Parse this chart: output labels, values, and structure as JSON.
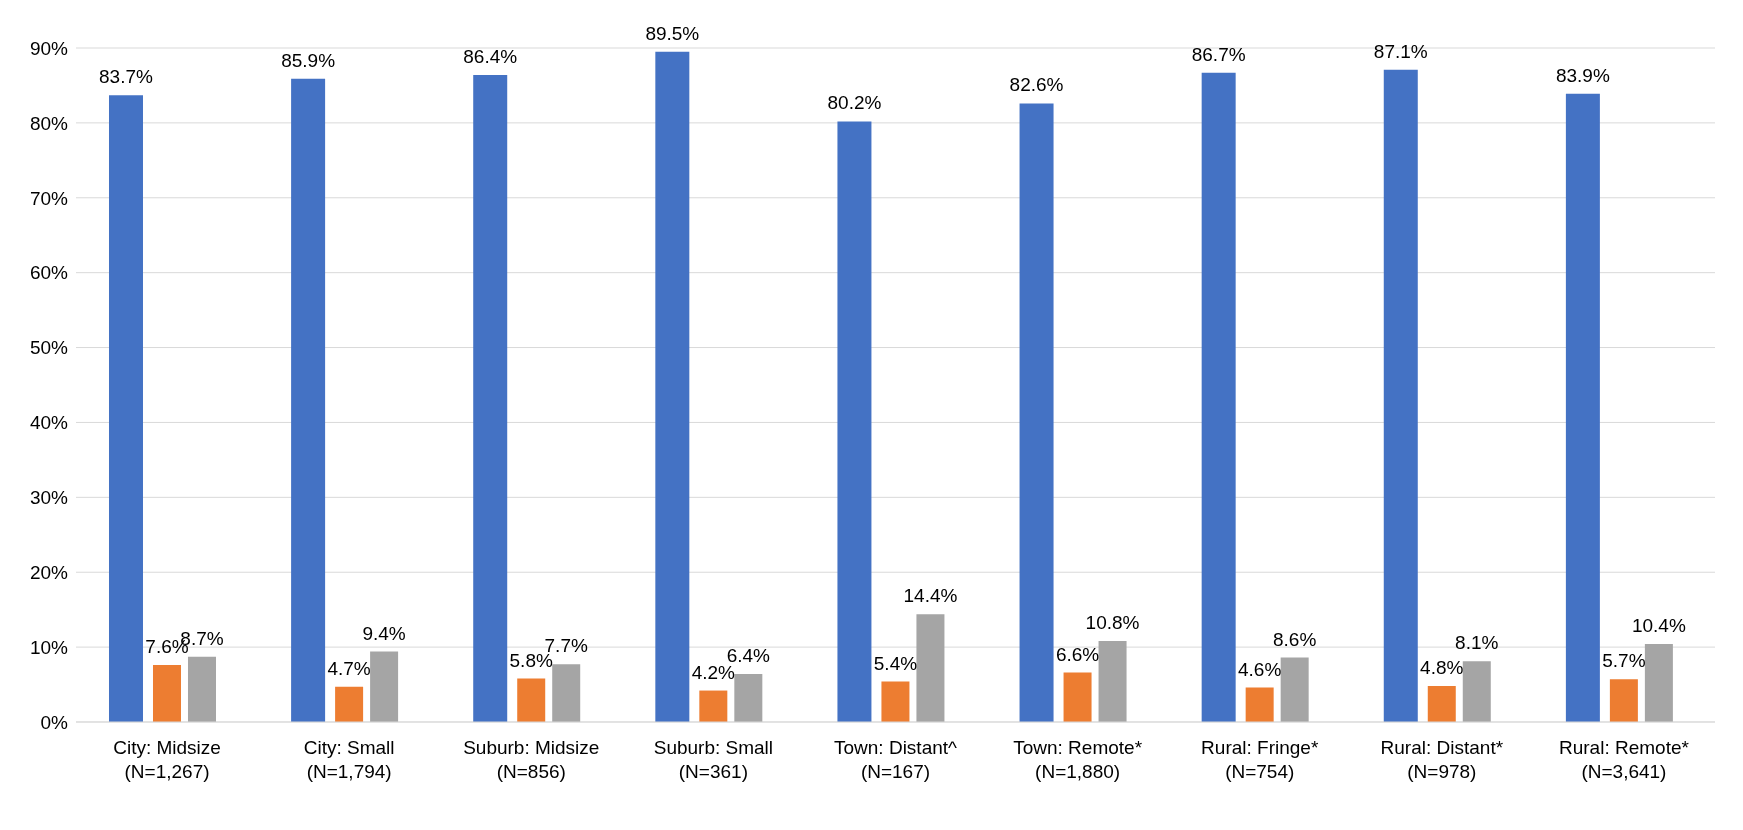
{
  "chart_data": {
    "type": "bar",
    "categories": [
      "City: Midsize\n(N=1,267)",
      "City: Small\n(N=1,794)",
      "Suburb: Midsize\n(N=856)",
      "Suburb: Small\n(N=361)",
      "Town: Distant^\n(N=167)",
      "Town: Remote*\n(N=1,880)",
      "Rural: Fringe*\n(N=754)",
      "Rural: Distant*\n(N=978)",
      "Rural: Remote*\n(N=3,641)"
    ],
    "series": [
      {
        "color": "#4472c4",
        "values": [
          83.7,
          85.9,
          86.4,
          89.5,
          80.2,
          82.6,
          86.7,
          87.1,
          83.9
        ],
        "value_labels": [
          "83.7%",
          "85.9%",
          "86.4%",
          "89.5%",
          "80.2%",
          "82.6%",
          "86.7%",
          "87.1%",
          "83.9%"
        ]
      },
      {
        "color": "#ed7d31",
        "values": [
          7.6,
          4.7,
          5.8,
          4.2,
          5.4,
          6.6,
          4.6,
          4.8,
          5.7
        ],
        "value_labels": [
          "7.6%",
          "4.7%",
          "5.8%",
          "4.2%",
          "5.4%",
          "6.6%",
          "4.6%",
          "4.8%",
          "5.7%"
        ]
      },
      {
        "color": "#a5a5a5",
        "values": [
          8.7,
          9.4,
          7.7,
          6.4,
          14.4,
          10.8,
          8.6,
          8.1,
          10.4
        ],
        "value_labels": [
          "8.7%",
          "9.4%",
          "7.7%",
          "6.4%",
          "14.4%",
          "10.8%",
          "8.6%",
          "8.1%",
          "10.4%"
        ]
      }
    ],
    "ylim": [
      0,
      90
    ],
    "yticks": [
      {
        "value": 0,
        "label": "0%"
      },
      {
        "value": 10,
        "label": "10%"
      },
      {
        "value": 20,
        "label": "20%"
      },
      {
        "value": 30,
        "label": "30%"
      },
      {
        "value": 40,
        "label": "40%"
      },
      {
        "value": 50,
        "label": "50%"
      },
      {
        "value": 60,
        "label": "60%"
      },
      {
        "value": 70,
        "label": "70%"
      },
      {
        "value": 80,
        "label": "80%"
      },
      {
        "value": 90,
        "label": "90%"
      }
    ],
    "grid": "y",
    "legend": false
  }
}
